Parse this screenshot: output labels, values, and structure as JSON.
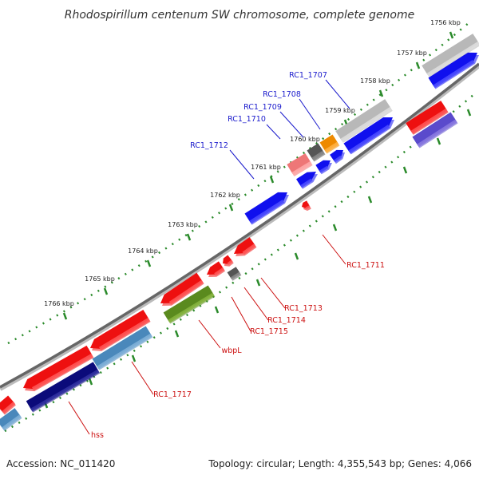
{
  "title": "Rhodospirillum centenum SW chromosome, complete genome",
  "footer": {
    "accession": "Accession: NC_011420",
    "topology": "Topology: circular; Length: 4,355,543 bp; Genes: 4,066"
  },
  "colors": {
    "backbone": "#777777",
    "tick": "#2a8a2a",
    "label_forward": "#1a1acc",
    "label_reverse": "#cc1111"
  },
  "scale_labels": [
    "1756 kbp",
    "1757 kbp",
    "1758 kbp",
    "1759 kbp",
    "1760 kbp",
    "1761 kbp",
    "1762 kbp",
    "1763 kbp",
    "1764 kbp",
    "1765 kbp",
    "1766 kbp"
  ],
  "gene_labels_forward": [
    "RC1_1707",
    "RC1_1708",
    "RC1_1709",
    "RC1_1710",
    "RC1_1712"
  ],
  "gene_labels_reverse": [
    "RC1_1711",
    "RC1_1713",
    "RC1_1714",
    "RC1_1715",
    "wbpL",
    "RC1_1717",
    "hss"
  ],
  "feature_colors": [
    "blue",
    "red",
    "light-grey",
    "steel-blue",
    "navy",
    "olive-green",
    "orange",
    "dark-grey",
    "pink",
    "slate-blue"
  ]
}
